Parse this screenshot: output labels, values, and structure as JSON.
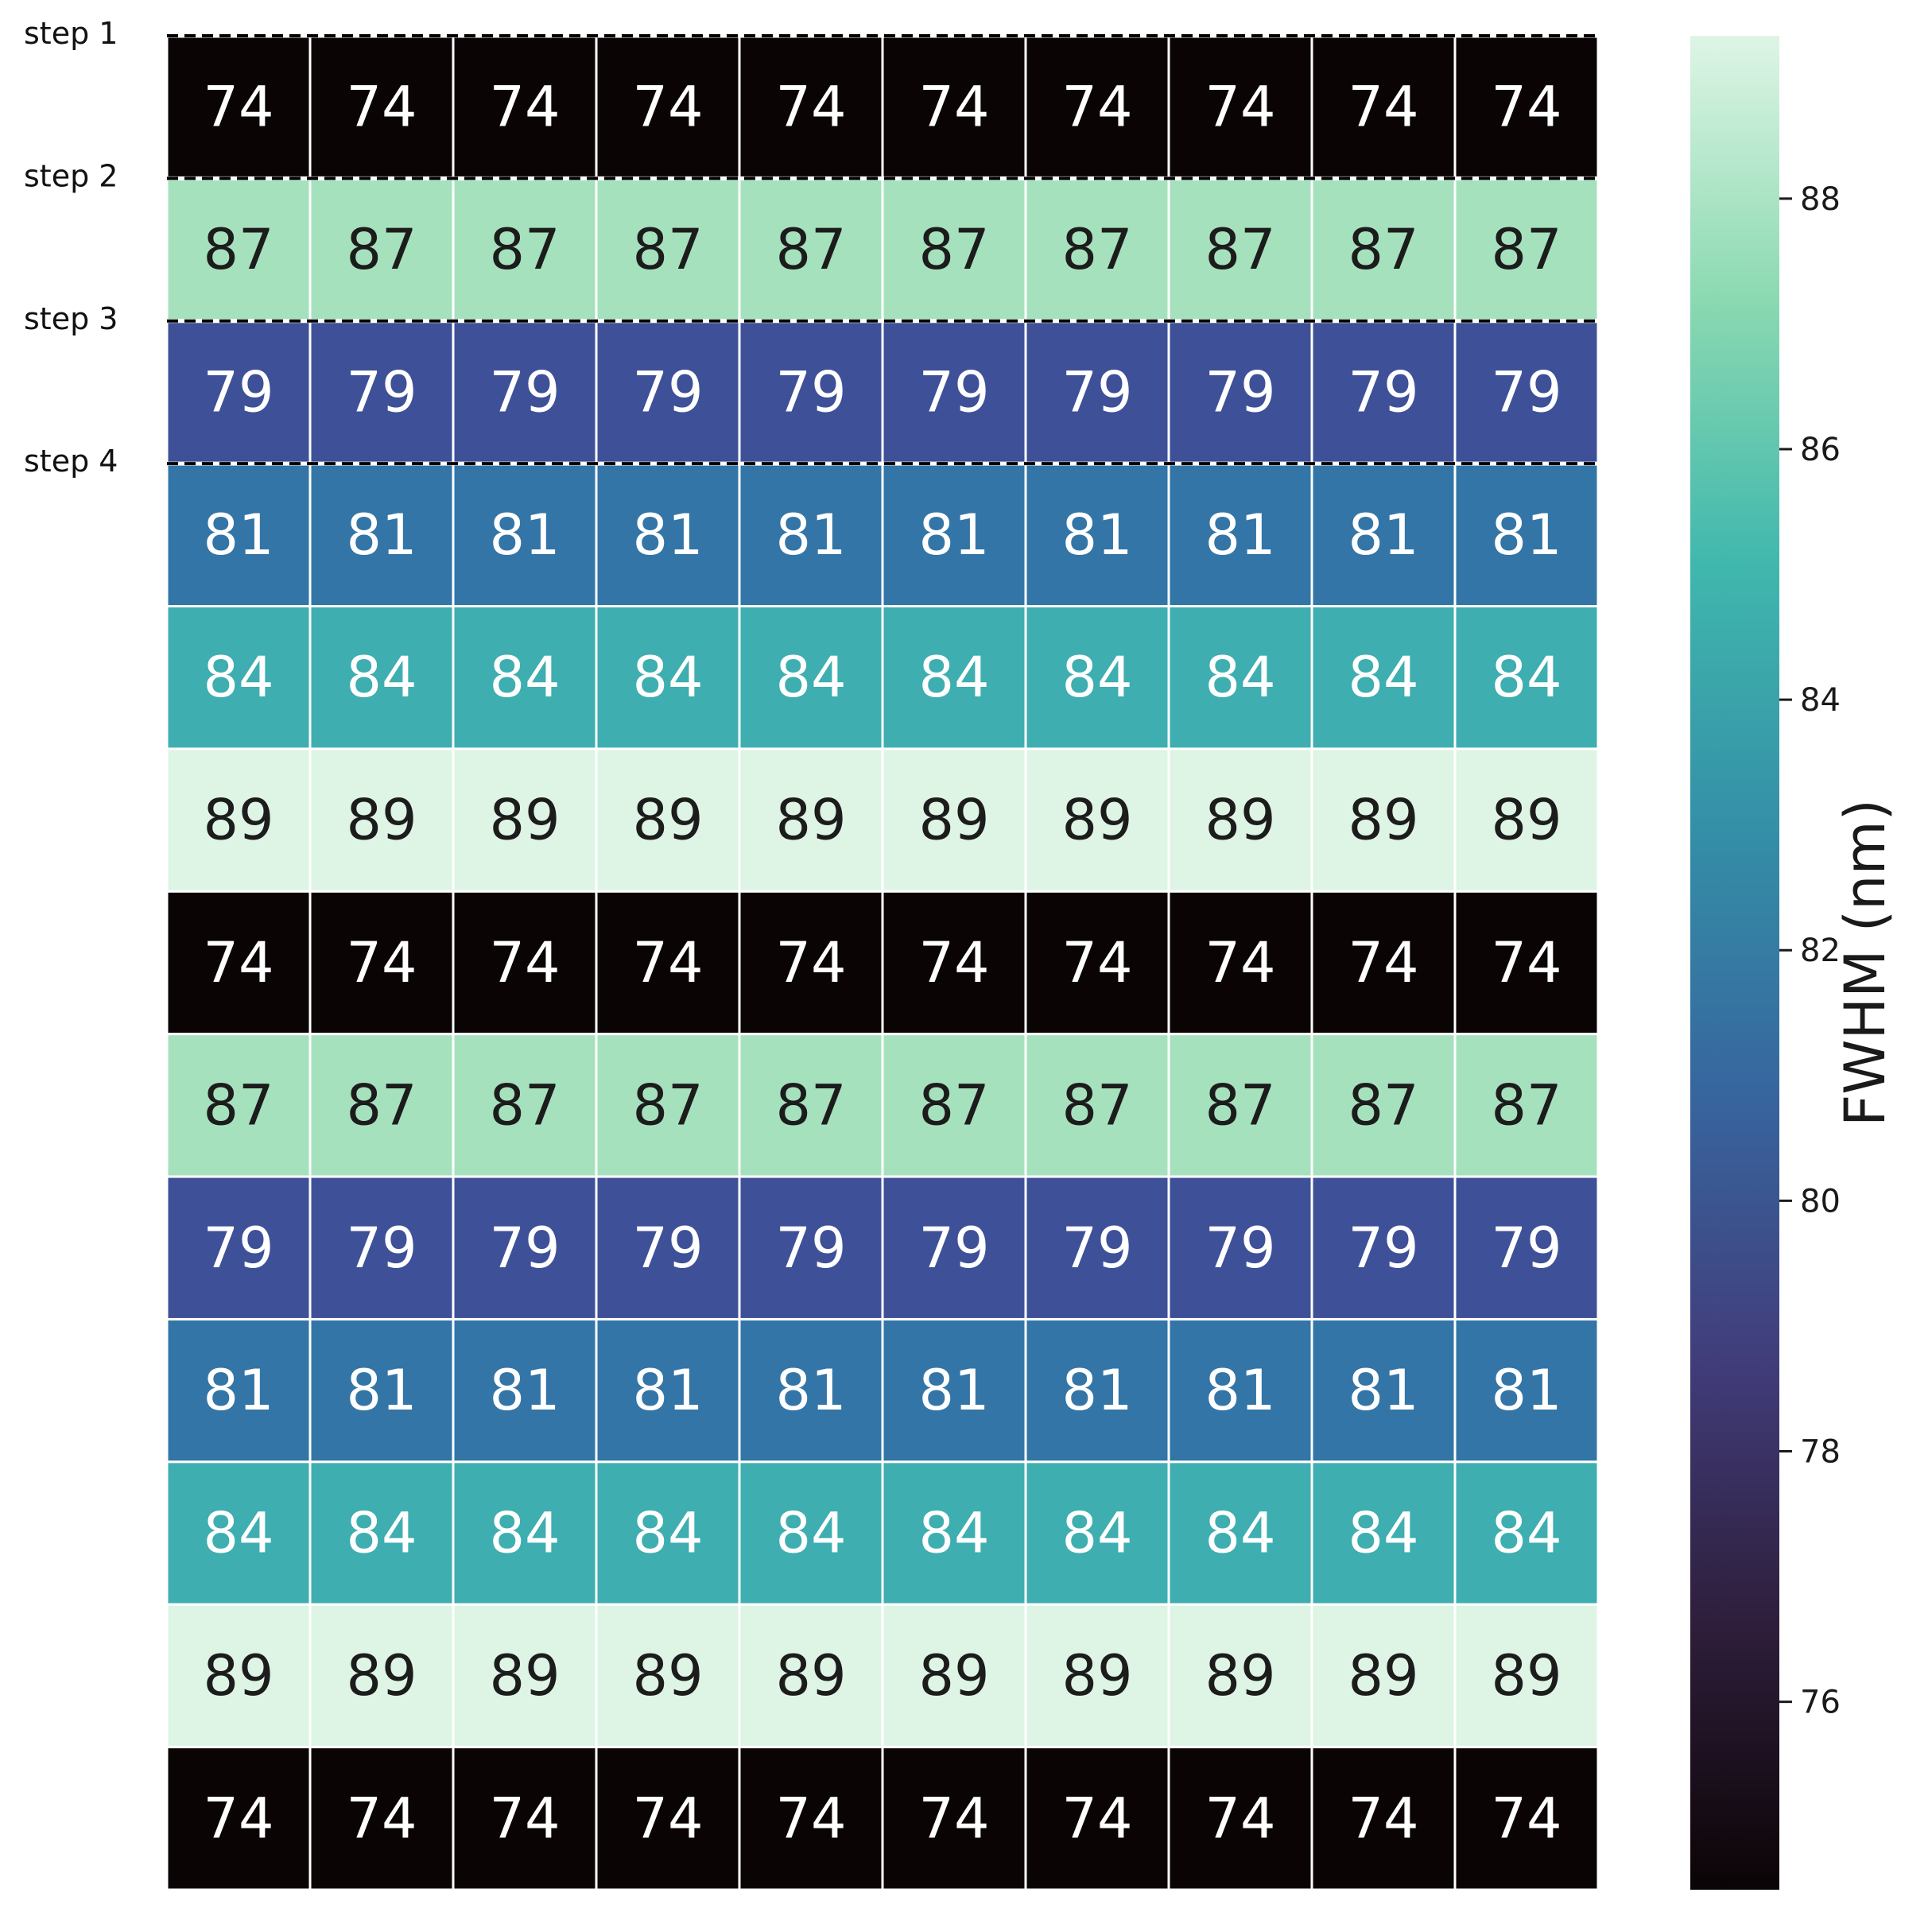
{
  "chart_data": {
    "type": "heatmap",
    "row_values": [
      74,
      87,
      79,
      81,
      84,
      89,
      74,
      87,
      79,
      81,
      84,
      89,
      74
    ],
    "n_cols": 10,
    "step_labels": [
      "step 1",
      "step 2",
      "step 3",
      "step 4"
    ],
    "colorbar": {
      "label": "FWHM (nm)",
      "range": [
        74.5,
        89.3
      ],
      "ticks": [
        76,
        78,
        80,
        82,
        84,
        86,
        88
      ]
    },
    "colors": {
      "74": "#0b0405",
      "79": "#3e5097",
      "81": "#3375a6",
      "84": "#3eaeb0",
      "87": "#a6e1bd",
      "89": "#def4e4"
    },
    "colormap": [
      "#0b0405",
      "#2e1e3b",
      "#413d7b",
      "#37659e",
      "#348fa7",
      "#40b7ad",
      "#8ad9b1",
      "#def5e5"
    ]
  }
}
